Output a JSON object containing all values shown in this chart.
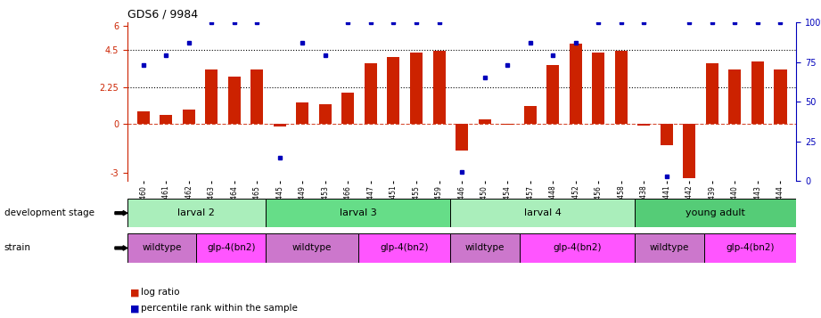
{
  "title": "GDS6 / 9984",
  "samples": [
    "GSM460",
    "GSM461",
    "GSM462",
    "GSM463",
    "GSM464",
    "GSM465",
    "GSM445",
    "GSM449",
    "GSM453",
    "GSM466",
    "GSM447",
    "GSM451",
    "GSM455",
    "GSM459",
    "GSM446",
    "GSM450",
    "GSM454",
    "GSM457",
    "GSM448",
    "GSM452",
    "GSM456",
    "GSM458",
    "GSM438",
    "GSM441",
    "GSM442",
    "GSM439",
    "GSM440",
    "GSM443",
    "GSM444"
  ],
  "log_ratio": [
    0.75,
    0.55,
    0.9,
    3.3,
    2.9,
    3.3,
    -0.15,
    1.3,
    1.2,
    1.9,
    3.7,
    4.1,
    4.35,
    4.45,
    -1.6,
    0.3,
    -0.05,
    1.1,
    3.6,
    4.9,
    4.35,
    4.45,
    -0.1,
    -1.3,
    -3.3,
    3.7,
    3.3,
    3.8,
    3.3
  ],
  "percentile": [
    73,
    79,
    87,
    100,
    100,
    100,
    15,
    87,
    79,
    100,
    100,
    100,
    100,
    100,
    6,
    65,
    73,
    87,
    79,
    87,
    100,
    100,
    100,
    3,
    100,
    100,
    100,
    100,
    100
  ],
  "dev_stage_groups": [
    {
      "label": "larval 2",
      "start": 0,
      "end": 6,
      "color": "#aaeebb"
    },
    {
      "label": "larval 3",
      "start": 6,
      "end": 14,
      "color": "#66dd88"
    },
    {
      "label": "larval 4",
      "start": 14,
      "end": 22,
      "color": "#aaeebb"
    },
    {
      "label": "young adult",
      "start": 22,
      "end": 29,
      "color": "#55cc77"
    }
  ],
  "strain_groups": [
    {
      "label": "wildtype",
      "start": 0,
      "end": 3,
      "color": "#cc77cc"
    },
    {
      "label": "glp-4(bn2)",
      "start": 3,
      "end": 6,
      "color": "#ff55ff"
    },
    {
      "label": "wildtype",
      "start": 6,
      "end": 10,
      "color": "#cc77cc"
    },
    {
      "label": "glp-4(bn2)",
      "start": 10,
      "end": 14,
      "color": "#ff55ff"
    },
    {
      "label": "wildtype",
      "start": 14,
      "end": 17,
      "color": "#cc77cc"
    },
    {
      "label": "glp-4(bn2)",
      "start": 17,
      "end": 22,
      "color": "#ff55ff"
    },
    {
      "label": "wildtype",
      "start": 22,
      "end": 25,
      "color": "#cc77cc"
    },
    {
      "label": "glp-4(bn2)",
      "start": 25,
      "end": 29,
      "color": "#ff55ff"
    }
  ],
  "ylim": [
    -3.5,
    6.2
  ],
  "yticks_left": [
    -3,
    0,
    2.25,
    4.5,
    6
  ],
  "yticks_right_vals": [
    0,
    25,
    50,
    75,
    100
  ],
  "yticks_right_labels": [
    "0",
    "25",
    "50",
    "75",
    "100%"
  ],
  "hlines_dotted": [
    4.5,
    2.25
  ],
  "hline_dashed": 0.0,
  "bar_color": "#cc2200",
  "dot_color": "#0000bb",
  "bar_width": 0.55,
  "background_color": "#ffffff"
}
